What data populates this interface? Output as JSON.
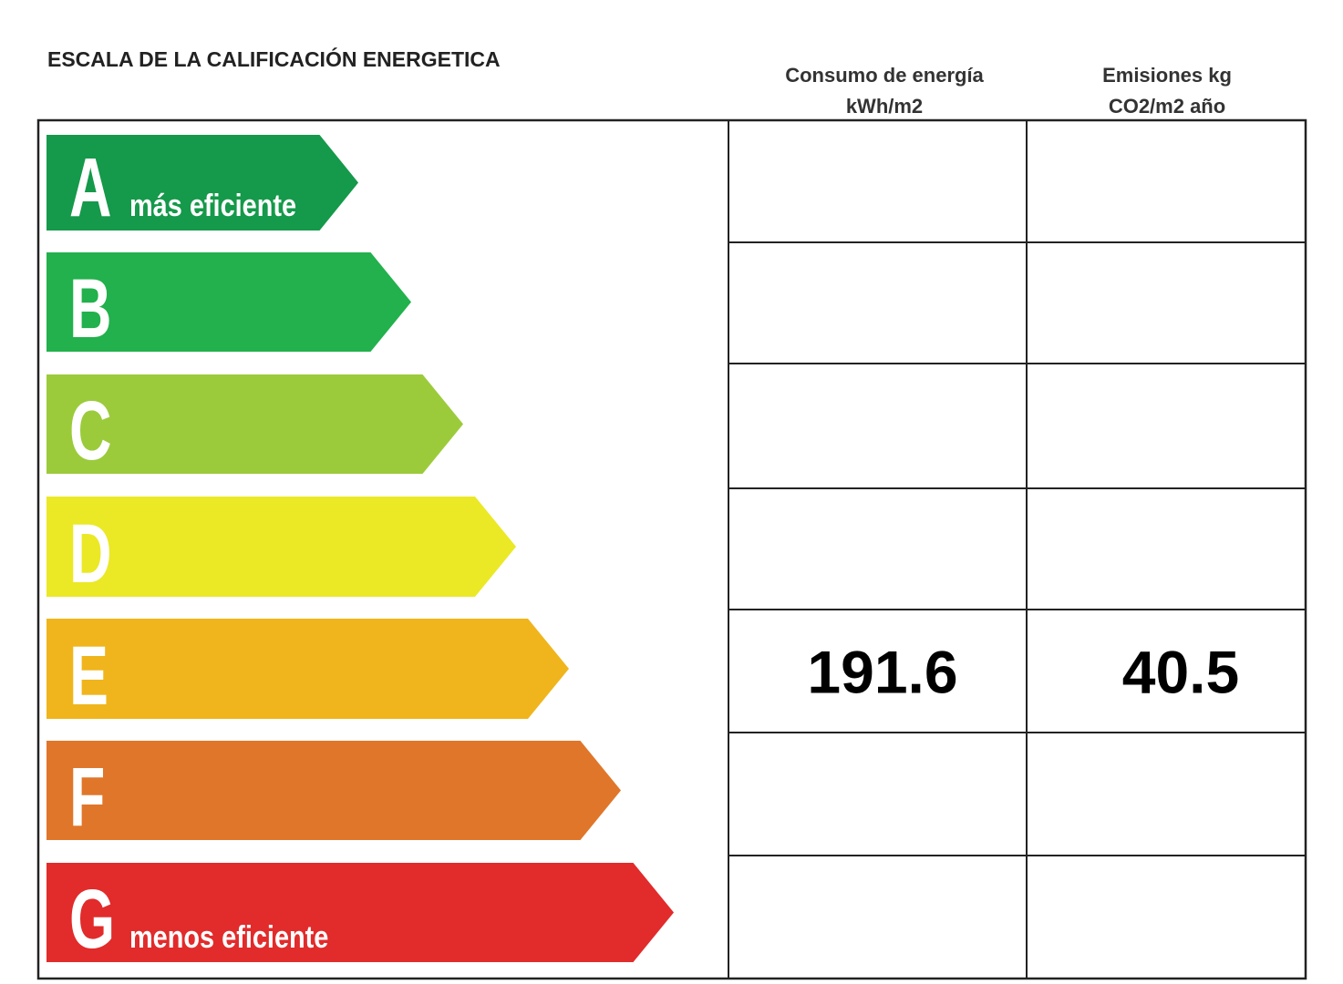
{
  "title": "ESCALA DE LA CALIFICACIÓN ENERGETICA",
  "columns": {
    "consumption": "Consumo de energía kWh/m2",
    "emissions": "Emisiones kg CO2/m2 año"
  },
  "rows": [
    {
      "letter": "A",
      "note": "más eficiente",
      "color": "#15994a"
    },
    {
      "letter": "B",
      "color": "#22b14c"
    },
    {
      "letter": "C",
      "color": "#9bcb3b"
    },
    {
      "letter": "D",
      "color": "#ebe826"
    },
    {
      "letter": "E",
      "color": "#f0b51c",
      "consumption": 191.6,
      "emissions": 40.5
    },
    {
      "letter": "F",
      "color": "#e0762a"
    },
    {
      "letter": "G",
      "note": "menos eficiente",
      "color": "#e22b2b"
    }
  ]
}
